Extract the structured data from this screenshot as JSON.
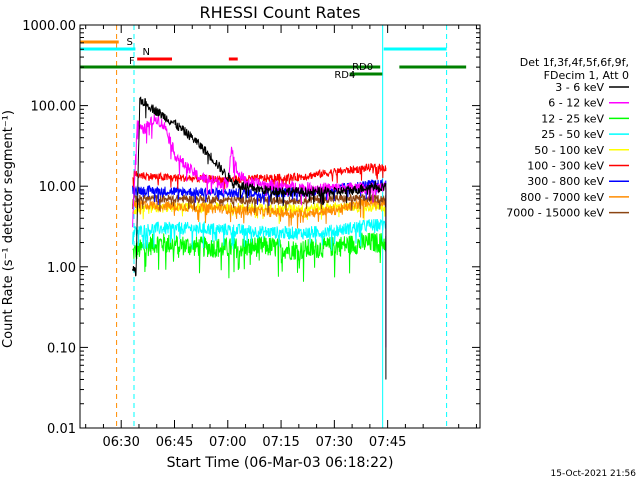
{
  "chart_data": {
    "type": "line",
    "title": "RHESSI Count Rates",
    "xlabel": "Start Time (06-Mar-03 06:18:22)",
    "ylabel": "Count Rate (s⁻¹ detector segment⁻¹)",
    "yscale": "log",
    "ylim": [
      0.01,
      1000
    ],
    "xlim_minutes": [
      18.4,
      131
    ],
    "x_ticks": [
      {
        "label": "06:30",
        "min": 30
      },
      {
        "label": "06:45",
        "min": 45
      },
      {
        "label": "07:00",
        "min": 60
      },
      {
        "label": "07:15",
        "min": 75
      },
      {
        "label": "07:30",
        "min": 90
      },
      {
        "label": "07:45",
        "min": 105
      }
    ],
    "y_ticks": [
      {
        "label": "1000.00",
        "value": 1000
      },
      {
        "label": "100.00",
        "value": 100
      },
      {
        "label": "10.00",
        "value": 10
      },
      {
        "label": "1.00",
        "value": 1
      },
      {
        "label": "0.10",
        "value": 0.1
      },
      {
        "label": "0.01",
        "value": 0.01
      }
    ],
    "legend_header": [
      "Det 1f,3f,4f,5f,6f,9f,",
      "FDecim 1, Att 0"
    ],
    "series": [
      {
        "name": "3 - 6 keV",
        "color": "#000000",
        "start": 33.2,
        "end": 104.5,
        "points": [
          [
            33.2,
            1.0
          ],
          [
            34.2,
            0.8
          ],
          [
            35.2,
            120
          ],
          [
            37,
            105
          ],
          [
            40,
            85
          ],
          [
            45,
            60
          ],
          [
            50,
            40
          ],
          [
            55,
            24
          ],
          [
            60,
            13
          ],
          [
            64,
            10
          ],
          [
            70,
            9
          ],
          [
            80,
            8.5
          ],
          [
            90,
            8.5
          ],
          [
            96,
            9
          ],
          [
            100,
            10
          ],
          [
            104.5,
            9
          ],
          [
            104.5,
            0.04
          ]
        ]
      },
      {
        "name": "6 - 12 keV",
        "color": "#ff00ff",
        "start": 33.2,
        "end": 104.5,
        "points": [
          [
            33.2,
            3.5
          ],
          [
            34.5,
            60
          ],
          [
            36,
            48
          ],
          [
            38,
            60
          ],
          [
            40,
            70
          ],
          [
            43,
            50
          ],
          [
            45,
            25
          ],
          [
            48,
            18
          ],
          [
            52,
            13
          ],
          [
            58,
            11
          ],
          [
            60,
            11
          ],
          [
            61,
            31
          ],
          [
            62,
            19
          ],
          [
            63,
            14
          ],
          [
            66,
            11
          ],
          [
            75,
            10
          ],
          [
            85,
            9.5
          ],
          [
            95,
            9.5
          ],
          [
            104.5,
            9.5
          ],
          [
            104.5,
            0.1
          ]
        ]
      },
      {
        "name": "12 - 25 keV",
        "color": "#00ff00",
        "start": 33.2,
        "end": 104.5,
        "points": [
          [
            33.2,
            1.5
          ],
          [
            40,
            2.0
          ],
          [
            50,
            1.8
          ],
          [
            60,
            1.7
          ],
          [
            70,
            1.8
          ],
          [
            80,
            1.6
          ],
          [
            90,
            1.8
          ],
          [
            100,
            2.0
          ],
          [
            104.5,
            2.1
          ]
        ]
      },
      {
        "name": "25 - 50 keV",
        "color": "#00ffff",
        "start": 33.2,
        "end": 104.5,
        "points": [
          [
            33.2,
            2.7
          ],
          [
            40,
            3.0
          ],
          [
            50,
            3.0
          ],
          [
            60,
            2.9
          ],
          [
            70,
            2.7
          ],
          [
            80,
            2.6
          ],
          [
            90,
            2.8
          ],
          [
            100,
            3.3
          ],
          [
            104.5,
            3.4
          ]
        ]
      },
      {
        "name": "50 - 100 keV",
        "color": "#ffff00",
        "start": 33.2,
        "end": 104.5,
        "points": [
          [
            33.2,
            5.0
          ],
          [
            45,
            5.5
          ],
          [
            60,
            5.5
          ],
          [
            75,
            5.2
          ],
          [
            90,
            5.5
          ],
          [
            104.5,
            6.0
          ]
        ]
      },
      {
        "name": "100 - 300 keV",
        "color": "#ff0000",
        "start": 33.2,
        "end": 104.5,
        "points": [
          [
            33.2,
            14
          ],
          [
            40,
            13
          ],
          [
            50,
            12.5
          ],
          [
            60,
            12
          ],
          [
            70,
            12.5
          ],
          [
            80,
            13
          ],
          [
            90,
            15
          ],
          [
            100,
            17
          ],
          [
            104.5,
            17
          ]
        ]
      },
      {
        "name": "300 - 800 keV",
        "color": "#0000ff",
        "start": 33.2,
        "end": 104.5,
        "points": [
          [
            33.2,
            9
          ],
          [
            40,
            8.8
          ],
          [
            50,
            8.5
          ],
          [
            60,
            8.2
          ],
          [
            70,
            8.2
          ],
          [
            80,
            8.5
          ],
          [
            90,
            9.2
          ],
          [
            100,
            10.5
          ],
          [
            104.5,
            10.5
          ]
        ]
      },
      {
        "name": "800 - 7000 keV",
        "color": "#ff8c00",
        "start": 33.2,
        "end": 104.5,
        "points": [
          [
            33.2,
            6
          ],
          [
            40,
            5.8
          ],
          [
            50,
            5.5
          ],
          [
            60,
            5.2
          ],
          [
            70,
            4.8
          ],
          [
            80,
            4.6
          ],
          [
            90,
            5.0
          ],
          [
            100,
            6.5
          ],
          [
            104.5,
            7.0
          ]
        ]
      },
      {
        "name": "7000 - 15000 keV",
        "color": "#8b4513",
        "start": 33.2,
        "end": 104.5,
        "points": [
          [
            33.2,
            7
          ],
          [
            45,
            7
          ],
          [
            60,
            6.8
          ],
          [
            75,
            6.6
          ],
          [
            90,
            7
          ],
          [
            104.5,
            7.5
          ]
        ]
      }
    ],
    "vertical_lines": [
      {
        "min": 18.4,
        "color": "#00ffff",
        "style": "solid"
      },
      {
        "min": 28.7,
        "color": "#ff8c00",
        "style": "dashed"
      },
      {
        "min": 33.6,
        "color": "#00ffff",
        "style": "dashed"
      },
      {
        "min": 103.6,
        "color": "#00ffff",
        "style": "solid"
      },
      {
        "min": 121.6,
        "color": "#00ffff",
        "style": "dashed"
      }
    ],
    "flag_bars": [
      {
        "label": "S",
        "color": "#ff8c00",
        "level": 1,
        "segments": [
          [
            18.4,
            29.3
          ]
        ],
        "label_at": 31.5
      },
      {
        "label": "N",
        "color": "#00ffff",
        "level": 2,
        "segments": [
          [
            18.4,
            34.0
          ],
          [
            103.9,
            121.6
          ]
        ],
        "label_at": 36.0
      },
      {
        "label": "F",
        "color": "#ff0000",
        "level": 3,
        "segments": [
          [
            34.5,
            44.3
          ],
          [
            60.3,
            62.8
          ]
        ],
        "label_at": 32.2
      },
      {
        "label": "RD0",
        "color": "#008000",
        "level": 4,
        "segments": [
          [
            18.4,
            102.9
          ],
          [
            108.3,
            127.1
          ]
        ],
        "label_at": 95.0
      },
      {
        "label": "RD4",
        "color": "#008000",
        "level": 5,
        "segments": [
          [
            94.3,
            103.5
          ]
        ],
        "label_at": 90.0
      }
    ],
    "timestamp": "15-Oct-2021 21:56"
  }
}
